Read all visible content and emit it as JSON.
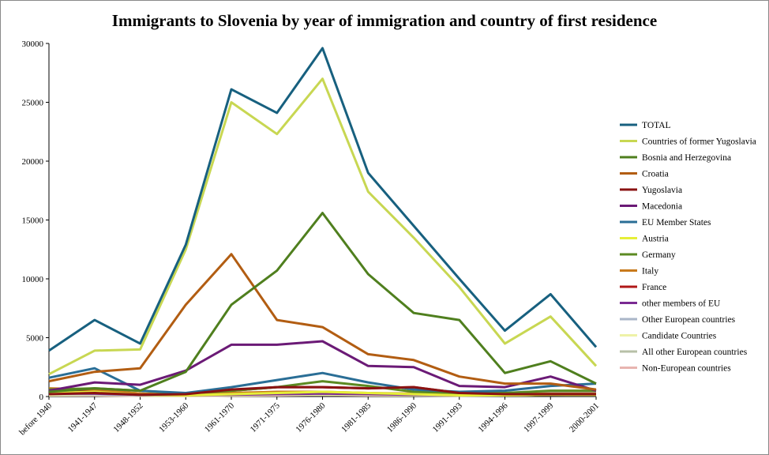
{
  "chart_data": {
    "type": "line",
    "title": "Immigrants to Slovenia by year of immigration and country of first residence",
    "xlabel": "",
    "ylabel": "",
    "categories": [
      "before 1940",
      "1941-1947",
      "1948-1952",
      "1953-1960",
      "1961-1970",
      "1971-1975",
      "1976-1980",
      "1981-1985",
      "1986-1990",
      "1991-1993",
      "1994-1996",
      "1997-1999",
      "2000-2001"
    ],
    "ylim": [
      0,
      30000
    ],
    "yticks": [
      0,
      5000,
      10000,
      15000,
      20000,
      25000,
      30000
    ],
    "grid": false,
    "legend_position": "right",
    "series": [
      {
        "name": "TOTAL",
        "color": "#17607f",
        "values": [
          3900,
          6500,
          4500,
          12900,
          26100,
          24100,
          29600,
          19000,
          14500,
          10000,
          5600,
          8700,
          4200
        ]
      },
      {
        "name": "Countries of former Yugoslavia",
        "color": "#c8d752",
        "values": [
          1900,
          3900,
          4000,
          12500,
          25000,
          22300,
          27000,
          17400,
          13500,
          9300,
          4500,
          6800,
          2600
        ]
      },
      {
        "name": "Bosnia and Herzegovina",
        "color": "#4f7f1e",
        "values": [
          400,
          700,
          500,
          2100,
          7800,
          10700,
          15600,
          10400,
          7100,
          6500,
          2000,
          3000,
          1100
        ]
      },
      {
        "name": "Croatia",
        "color": "#b25d12",
        "values": [
          1300,
          2100,
          2400,
          7800,
          12100,
          6500,
          5900,
          3600,
          3100,
          1700,
          1100,
          1100,
          600
        ]
      },
      {
        "name": "Yugoslavia",
        "color": "#8a1212",
        "values": [
          200,
          300,
          150,
          200,
          600,
          800,
          800,
          700,
          800,
          300,
          200,
          200,
          200
        ]
      },
      {
        "name": "Macedonia",
        "color": "#6b1a76",
        "values": [
          500,
          1200,
          1000,
          2200,
          4400,
          4400,
          4700,
          2600,
          2500,
          900,
          800,
          1700,
          500
        ]
      },
      {
        "name": "EU Member States",
        "color": "#2a6e96",
        "values": [
          1600,
          2400,
          500,
          300,
          800,
          1400,
          2000,
          1200,
          600,
          400,
          500,
          900,
          1100
        ]
      },
      {
        "name": "Austria",
        "color": "#e6ef38",
        "values": [
          300,
          400,
          150,
          100,
          200,
          300,
          400,
          300,
          200,
          100,
          100,
          150,
          150
        ]
      },
      {
        "name": "Germany",
        "color": "#5c8a22",
        "values": [
          600,
          700,
          500,
          250,
          500,
          800,
          1300,
          900,
          400,
          300,
          300,
          500,
          500
        ]
      },
      {
        "name": "Italy",
        "color": "#c87a1c",
        "values": [
          700,
          600,
          250,
          150,
          300,
          400,
          400,
          300,
          250,
          200,
          200,
          250,
          250
        ]
      },
      {
        "name": "France",
        "color": "#b01818",
        "values": [
          500,
          500,
          250,
          100,
          500,
          800,
          800,
          700,
          800,
          300,
          200,
          200,
          200
        ]
      },
      {
        "name": "other members of EU",
        "color": "#7a2a92",
        "values": [
          250,
          250,
          150,
          100,
          150,
          200,
          250,
          200,
          150,
          100,
          100,
          150,
          200
        ]
      },
      {
        "name": "Other European countries",
        "color": "#aab6c8",
        "values": [
          200,
          200,
          100,
          100,
          200,
          250,
          300,
          250,
          200,
          150,
          200,
          300,
          400
        ]
      },
      {
        "name": "Candidate Countries",
        "color": "#eef2a8",
        "values": [
          100,
          150,
          80,
          60,
          100,
          150,
          150,
          150,
          100,
          80,
          100,
          150,
          150
        ]
      },
      {
        "name": "All other European countries",
        "color": "#b7c0a7",
        "values": [
          150,
          150,
          80,
          60,
          150,
          200,
          300,
          200,
          150,
          150,
          200,
          400,
          500
        ]
      },
      {
        "name": "Non-European countries",
        "color": "#e8b4b0",
        "values": [
          100,
          100,
          60,
          40,
          80,
          100,
          150,
          100,
          100,
          80,
          100,
          150,
          200
        ]
      }
    ]
  }
}
